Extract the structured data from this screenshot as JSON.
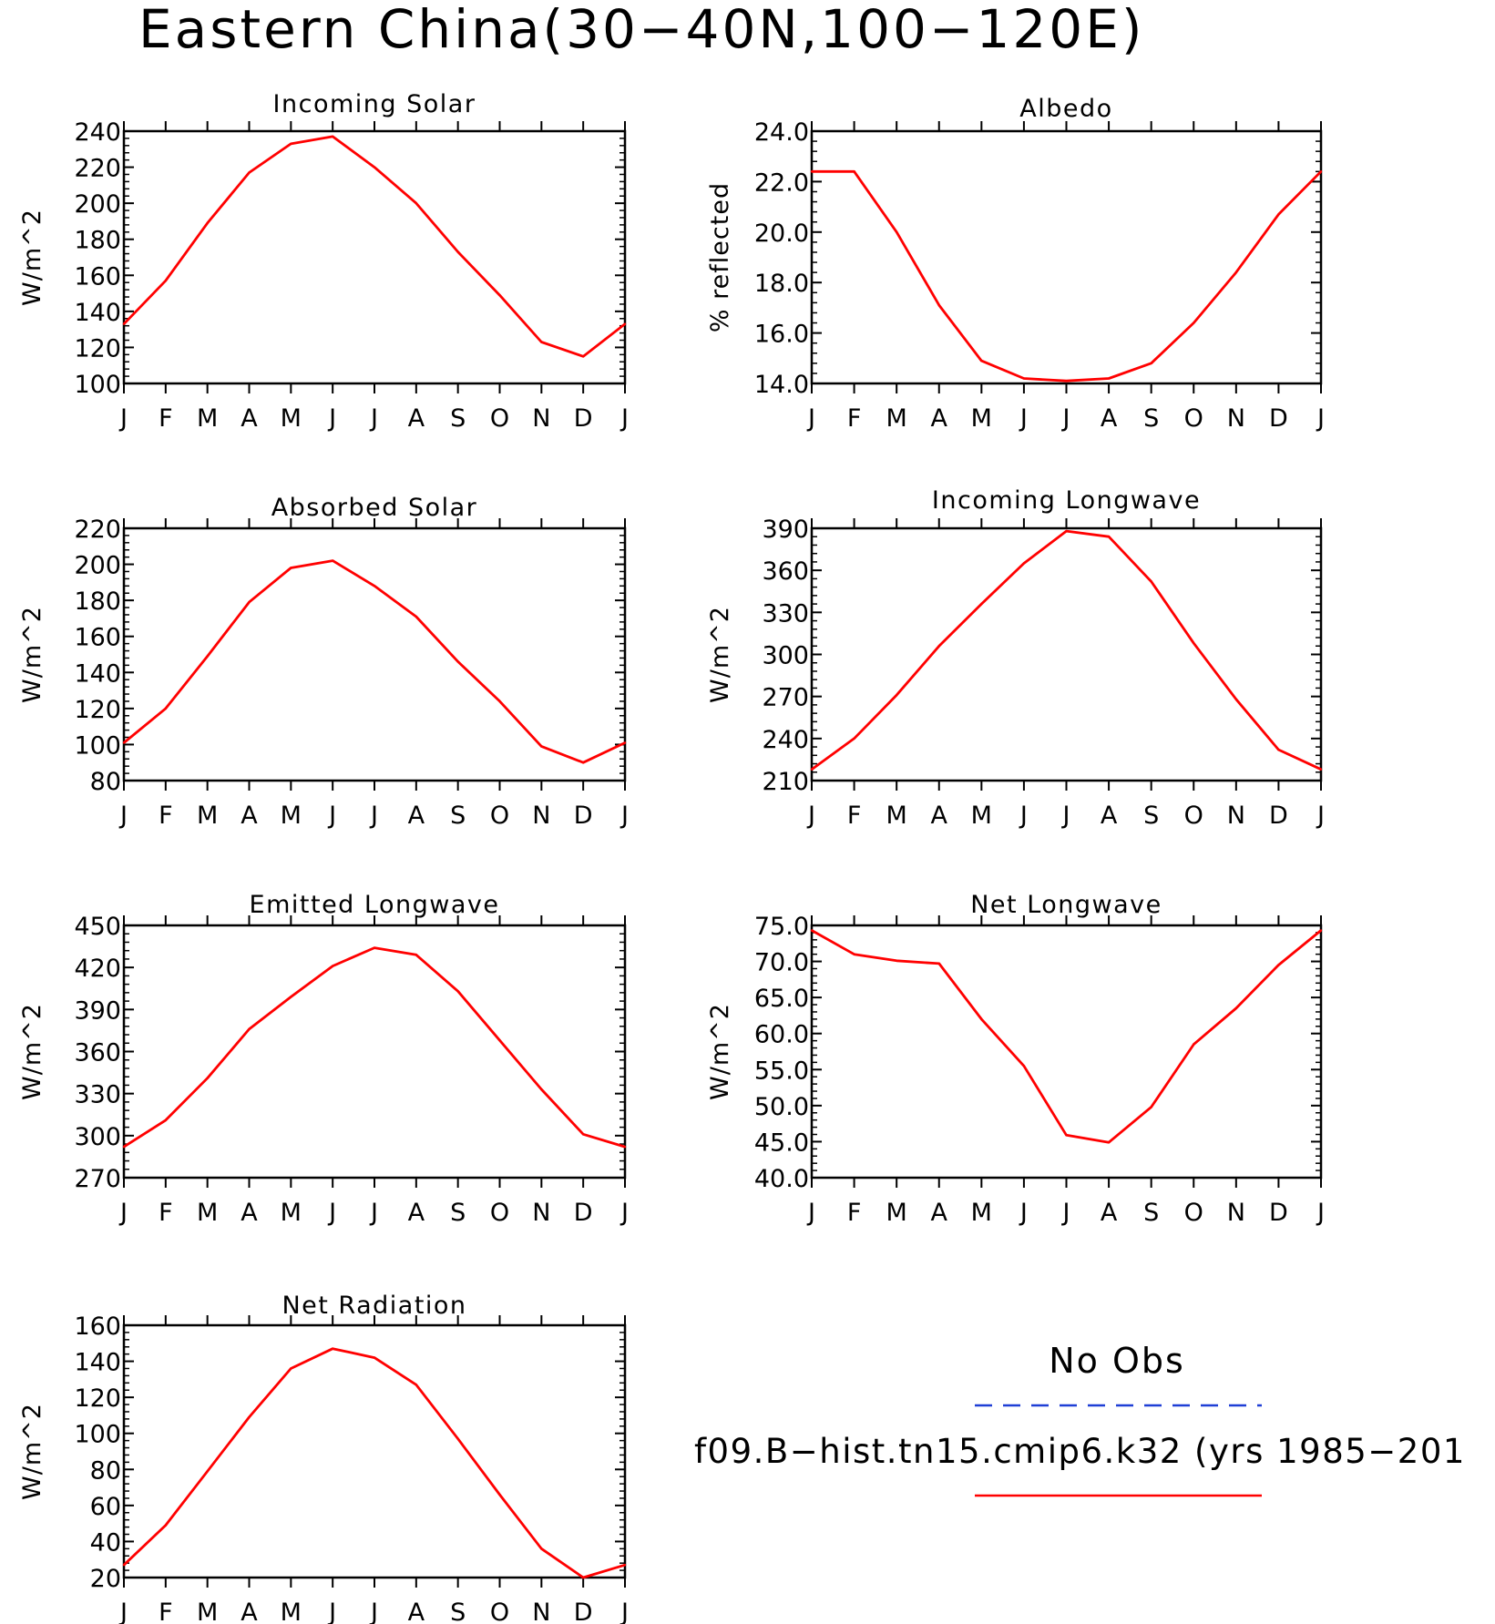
{
  "page_title": "Eastern China(30−40N,100−120E)",
  "x_tick_labels": [
    "J",
    "F",
    "M",
    "A",
    "M",
    "J",
    "J",
    "A",
    "S",
    "O",
    "N",
    "D",
    "J"
  ],
  "colors": {
    "model": "#ff0000",
    "obs": "#1f3fd6",
    "axis": "#000000"
  },
  "legend": {
    "obs_label": "No Obs",
    "model_label": "f09.B−hist.tn15.cmip6.k32 (yrs 1985−201"
  },
  "chart_data": [
    {
      "type": "line",
      "title": "Incoming Solar",
      "ylabel": "W/m^2",
      "ylim": [
        100,
        240
      ],
      "yticks": [
        "100",
        "120",
        "140",
        "160",
        "180",
        "200",
        "220",
        "240"
      ],
      "x": [
        "J",
        "F",
        "M",
        "A",
        "M",
        "J",
        "J",
        "A",
        "S",
        "O",
        "N",
        "D",
        "J"
      ],
      "series": [
        {
          "values": [
            133,
            157,
            189,
            217,
            233,
            237,
            220,
            200,
            173,
            149,
            123,
            115,
            133
          ]
        }
      ]
    },
    {
      "type": "line",
      "title": "Albedo",
      "ylabel": "% reflected",
      "ylim": [
        14.0,
        24.0
      ],
      "yticks": [
        "14.0",
        "16.0",
        "18.0",
        "20.0",
        "22.0",
        "24.0"
      ],
      "x": [
        "J",
        "F",
        "M",
        "A",
        "M",
        "J",
        "J",
        "A",
        "S",
        "O",
        "N",
        "D",
        "J"
      ],
      "series": [
        {
          "values": [
            22.4,
            22.4,
            20.0,
            17.1,
            14.9,
            14.2,
            14.1,
            14.2,
            14.8,
            16.4,
            18.4,
            20.7,
            22.4
          ]
        }
      ]
    },
    {
      "type": "line",
      "title": "Absorbed Solar",
      "ylabel": "W/m^2",
      "ylim": [
        80,
        220
      ],
      "yticks": [
        "80",
        "100",
        "120",
        "140",
        "160",
        "180",
        "200",
        "220"
      ],
      "x": [
        "J",
        "F",
        "M",
        "A",
        "M",
        "J",
        "J",
        "A",
        "S",
        "O",
        "N",
        "D",
        "J"
      ],
      "series": [
        {
          "values": [
            101,
            120,
            149,
            179,
            198,
            202,
            188,
            171,
            146,
            124,
            99,
            90,
            101
          ]
        }
      ]
    },
    {
      "type": "line",
      "title": "Incoming Longwave",
      "ylabel": "W/m^2",
      "ylim": [
        210,
        390
      ],
      "yticks": [
        "210",
        "240",
        "270",
        "300",
        "330",
        "360",
        "390"
      ],
      "x": [
        "J",
        "F",
        "M",
        "A",
        "M",
        "J",
        "J",
        "A",
        "S",
        "O",
        "N",
        "D",
        "J"
      ],
      "series": [
        {
          "values": [
            218,
            240,
            271,
            306,
            336,
            365,
            388,
            384,
            352,
            308,
            268,
            232,
            218
          ]
        }
      ]
    },
    {
      "type": "line",
      "title": "Emitted Longwave",
      "ylabel": "W/m^2",
      "ylim": [
        270,
        450
      ],
      "yticks": [
        "270",
        "300",
        "330",
        "360",
        "390",
        "420",
        "450"
      ],
      "x": [
        "J",
        "F",
        "M",
        "A",
        "M",
        "J",
        "J",
        "A",
        "S",
        "O",
        "N",
        "D",
        "J"
      ],
      "series": [
        {
          "values": [
            292,
            311,
            341,
            376,
            399,
            421,
            434,
            429,
            403,
            368,
            333,
            301,
            292
          ]
        }
      ]
    },
    {
      "type": "line",
      "title": "Net Longwave",
      "ylabel": "W/m^2",
      "ylim": [
        40.0,
        75.0
      ],
      "yticks": [
        "40.0",
        "45.0",
        "50.0",
        "55.0",
        "60.0",
        "65.0",
        "70.0",
        "75.0"
      ],
      "x": [
        "J",
        "F",
        "M",
        "A",
        "M",
        "J",
        "J",
        "A",
        "S",
        "O",
        "N",
        "D",
        "J"
      ],
      "series": [
        {
          "values": [
            74.3,
            71.0,
            70.1,
            69.7,
            62.0,
            55.5,
            45.9,
            44.9,
            49.8,
            58.5,
            63.5,
            69.5,
            74.3
          ]
        }
      ]
    },
    {
      "type": "line",
      "title": "Net Radiation",
      "ylabel": "W/m^2",
      "ylim": [
        20,
        160
      ],
      "yticks": [
        "20",
        "40",
        "60",
        "80",
        "100",
        "120",
        "140",
        "160"
      ],
      "x": [
        "J",
        "F",
        "M",
        "A",
        "M",
        "J",
        "J",
        "A",
        "S",
        "O",
        "N",
        "D",
        "J"
      ],
      "series": [
        {
          "values": [
            27,
            49,
            79,
            109,
            136,
            147,
            142,
            127,
            97,
            66,
            36,
            20,
            27
          ]
        }
      ]
    }
  ]
}
